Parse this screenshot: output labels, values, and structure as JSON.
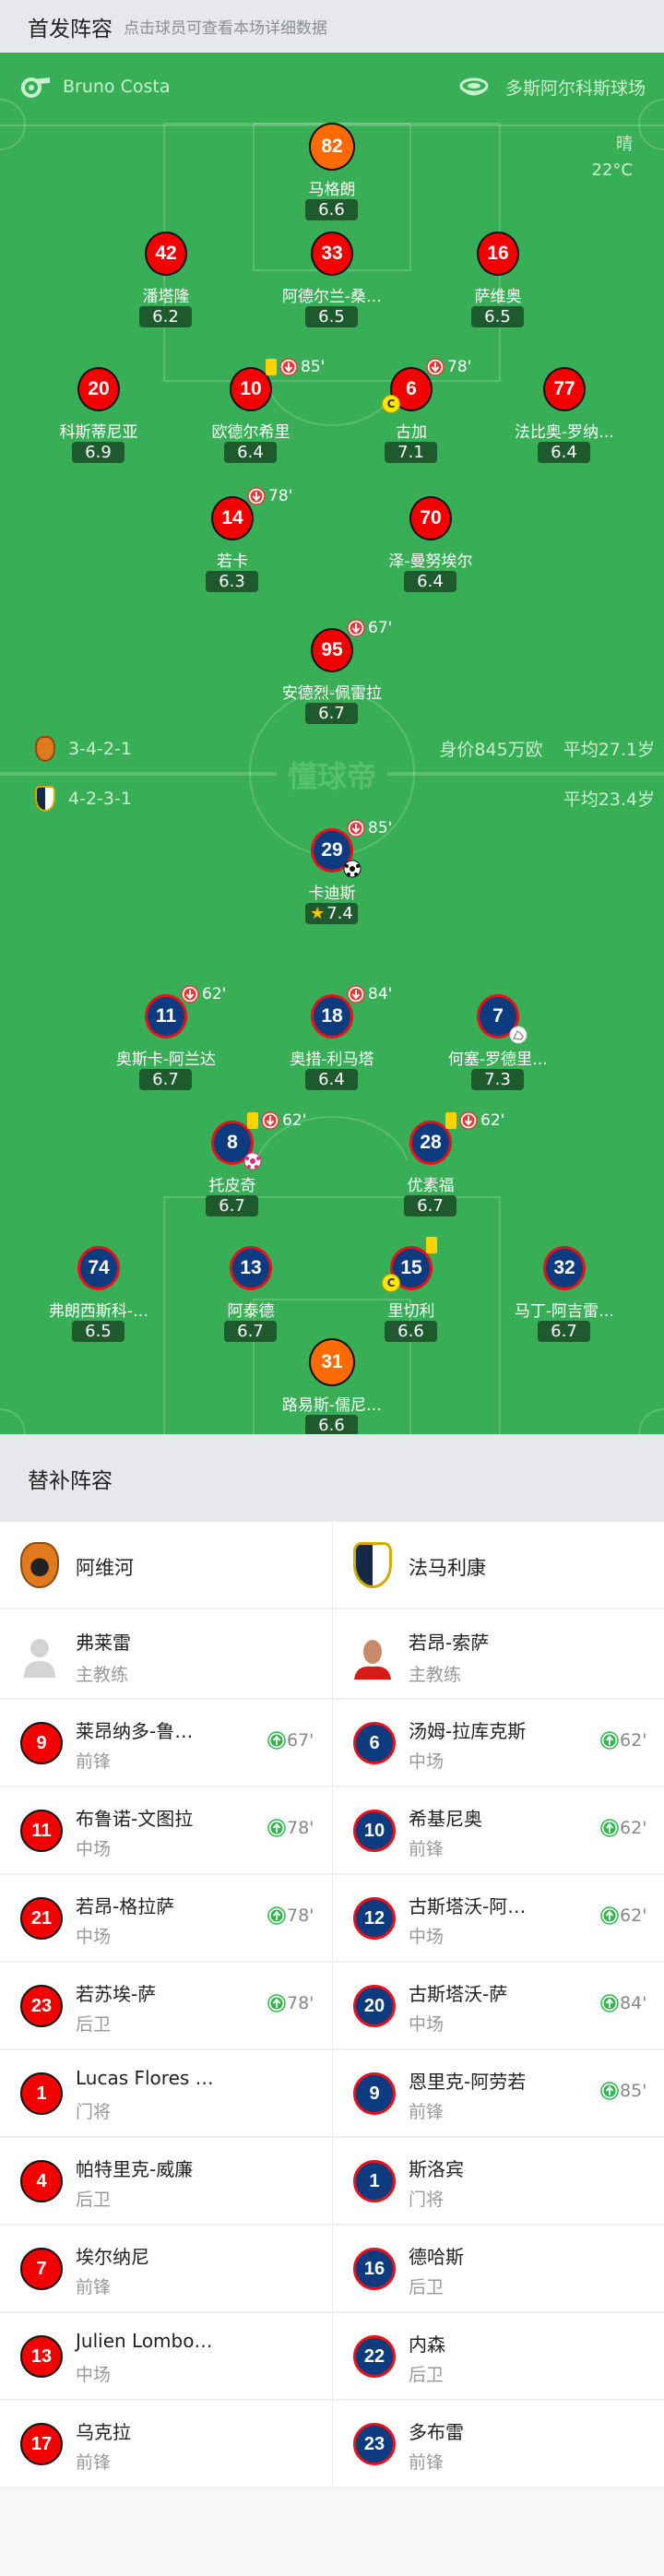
{
  "header": {
    "title": "首发阵容",
    "subtitle": "点击球员可查看本场详细数据"
  },
  "match": {
    "referee": "Bruno Costa",
    "venue": "多斯阿尔科斯球场",
    "weather": "晴",
    "temperature": "22°C",
    "watermark": "懂球帝"
  },
  "home": {
    "formation": "3-4-2-1",
    "market_value": "身价845万欧",
    "avg_age": "平均27.1岁",
    "color": "#f30000",
    "players": [
      {
        "number": "82",
        "name": "马格朗",
        "rating": "6.6",
        "gk": true
      },
      {
        "number": "42",
        "name": "潘塔隆",
        "rating": "6.2"
      },
      {
        "number": "33",
        "name": "阿德尔兰-桑…",
        "rating": "6.5"
      },
      {
        "number": "16",
        "name": "萨维奥",
        "rating": "6.5"
      },
      {
        "number": "20",
        "name": "科斯蒂尼亚",
        "rating": "6.9"
      },
      {
        "number": "10",
        "name": "欧德尔希里",
        "rating": "6.4",
        "yellow": true,
        "sub_out": "85'"
      },
      {
        "number": "6",
        "name": "古加",
        "rating": "7.1",
        "sub_out": "78'",
        "captain": true
      },
      {
        "number": "77",
        "name": "法比奥-罗纳…",
        "rating": "6.4"
      },
      {
        "number": "14",
        "name": "若卡",
        "rating": "6.3",
        "sub_out": "78'"
      },
      {
        "number": "70",
        "name": "泽-曼努埃尔",
        "rating": "6.4"
      },
      {
        "number": "95",
        "name": "安德烈-佩雷拉",
        "rating": "6.7",
        "sub_out": "67'"
      }
    ]
  },
  "away": {
    "formation": "4-2-3-1",
    "avg_age": "平均23.4岁",
    "color": "#0d3b80",
    "players": [
      {
        "number": "29",
        "name": "卡迪斯",
        "rating": "7.4",
        "sub_out": "85'",
        "goal": true,
        "mvp": true
      },
      {
        "number": "11",
        "name": "奥斯卡-阿兰达",
        "rating": "6.7",
        "sub_out": "62'"
      },
      {
        "number": "18",
        "name": "奥措-利马塔",
        "rating": "6.4",
        "sub_out": "84'"
      },
      {
        "number": "7",
        "name": "何塞-罗德里…",
        "rating": "7.3",
        "assist": true
      },
      {
        "number": "8",
        "name": "托皮奇",
        "rating": "6.7",
        "yellow": true,
        "sub_out": "62'",
        "own_goal": true
      },
      {
        "number": "28",
        "name": "优素福",
        "rating": "6.7",
        "yellow": true,
        "sub_out": "62'"
      },
      {
        "number": "74",
        "name": "弗朗西斯科-…",
        "rating": "6.5"
      },
      {
        "number": "13",
        "name": "阿泰德",
        "rating": "6.7"
      },
      {
        "number": "15",
        "name": "里切利",
        "rating": "6.6",
        "yellow": true,
        "captain": true
      },
      {
        "number": "32",
        "name": "马丁-阿吉雷…",
        "rating": "6.7"
      },
      {
        "number": "31",
        "name": "路易斯-儒尼…",
        "rating": "6.6",
        "gk": true
      }
    ]
  },
  "subs": {
    "title": "替补阵容",
    "home_team": "阿维河",
    "away_team": "法马利康",
    "home_coach": {
      "name": "弗莱雷",
      "role": "主教练"
    },
    "away_coach": {
      "name": "若昂-索萨",
      "role": "主教练"
    },
    "home": [
      {
        "number": "9",
        "name": "莱昂纳多-鲁…",
        "position": "前锋",
        "sub_in": "67'"
      },
      {
        "number": "11",
        "name": "布鲁诺-文图拉",
        "position": "中场",
        "sub_in": "78'"
      },
      {
        "number": "21",
        "name": "若昂-格拉萨",
        "position": "中场",
        "sub_in": "78'"
      },
      {
        "number": "23",
        "name": "若苏埃-萨",
        "position": "后卫",
        "sub_in": "78'"
      },
      {
        "number": "1",
        "name": "Lucas Flores …",
        "position": "门将"
      },
      {
        "number": "4",
        "name": "帕特里克-威廉",
        "position": "后卫"
      },
      {
        "number": "7",
        "name": "埃尔纳尼",
        "position": "前锋"
      },
      {
        "number": "13",
        "name": "Julien Lombo…",
        "position": "中场"
      },
      {
        "number": "17",
        "name": "乌克拉",
        "position": "前锋"
      }
    ],
    "away": [
      {
        "number": "6",
        "name": "汤姆-拉库克斯",
        "position": "中场",
        "sub_in": "62'"
      },
      {
        "number": "10",
        "name": "希基尼奥",
        "position": "前锋",
        "sub_in": "62'"
      },
      {
        "number": "12",
        "name": "古斯塔沃-阿…",
        "position": "中场",
        "sub_in": "62'"
      },
      {
        "number": "20",
        "name": "古斯塔沃-萨",
        "position": "中场",
        "sub_in": "84'"
      },
      {
        "number": "9",
        "name": "恩里克-阿劳若",
        "position": "前锋",
        "sub_in": "85'"
      },
      {
        "number": "1",
        "name": "斯洛宾",
        "position": "门将"
      },
      {
        "number": "16",
        "name": "德哈斯",
        "position": "后卫"
      },
      {
        "number": "22",
        "name": "内森",
        "position": "后卫"
      },
      {
        "number": "23",
        "name": "多布雷",
        "position": "前锋"
      }
    ]
  },
  "icons": {
    "referee": "whistle-icon",
    "venue": "stadium-icon",
    "sub_out": "arrow-down-circle-icon",
    "sub_in": "arrow-up-circle-icon",
    "goal": "football-icon",
    "captain": "captain-badge-icon",
    "mvp": "star-icon"
  }
}
